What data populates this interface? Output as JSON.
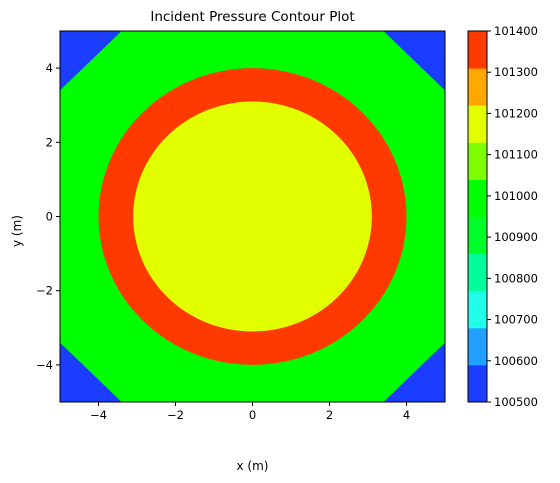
{
  "chart_data": {
    "type": "contour",
    "title": "Incident Pressure Contour Plot",
    "xlabel": "x (m)",
    "ylabel": "y (m)",
    "xlim": [
      -5,
      5
    ],
    "ylim": [
      -5,
      5
    ],
    "xticks": [
      -4,
      -2,
      0,
      2,
      4
    ],
    "yticks": [
      -4,
      -2,
      0,
      2,
      4
    ],
    "xtick_labels": [
      "−4",
      "−2",
      "0",
      "2",
      "4"
    ],
    "ytick_labels": [
      "−4",
      "−2",
      "0",
      "2",
      "4"
    ],
    "grid": false,
    "regions": [
      {
        "shape": "background",
        "level": 100550,
        "color": "#1a3dff"
      },
      {
        "shape": "octagon",
        "corner_cut_x": 1.6,
        "corner_cut_y": 1.6,
        "level": 100950,
        "color": "#00ff00"
      },
      {
        "shape": "circle",
        "center": [
          0,
          0
        ],
        "radius": 4.0,
        "level": 101350,
        "color": "#ff3a00"
      },
      {
        "shape": "circle",
        "center": [
          0,
          0
        ],
        "radius": 3.1,
        "level": 101150,
        "color": "#e2ff00"
      }
    ],
    "colorbar": {
      "min": 100500,
      "max": 101400,
      "ticks": [
        100500,
        100600,
        100700,
        100800,
        100900,
        101000,
        101100,
        101200,
        101300,
        101400
      ],
      "tick_labels": [
        "100500",
        "100600",
        "100700",
        "100800",
        "100900",
        "101000",
        "101100",
        "101200",
        "101300",
        "101400"
      ],
      "band_colors": [
        "#1a3dff",
        "#22a0ff",
        "#22ffe8",
        "#00ff9a",
        "#00ff2a",
        "#00ff00",
        "#7cff00",
        "#e2ff00",
        "#ffa800",
        "#ff3a00"
      ]
    }
  }
}
